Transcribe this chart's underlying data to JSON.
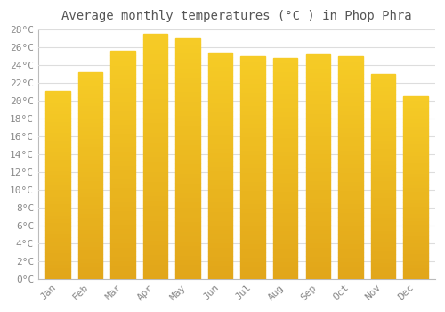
{
  "months": [
    "Jan",
    "Feb",
    "Mar",
    "Apr",
    "May",
    "Jun",
    "Jul",
    "Aug",
    "Sep",
    "Oct",
    "Nov",
    "Dec"
  ],
  "temperatures": [
    21.1,
    23.2,
    25.6,
    27.5,
    27.0,
    25.4,
    25.0,
    24.8,
    25.2,
    25.0,
    23.0,
    20.5
  ],
  "bar_color": "#F5A623",
  "bar_color_light": "#FFC84A",
  "title": "Average monthly temperatures (°C ) in Phop Phra",
  "ylim": [
    0,
    28
  ],
  "ytick_step": 2,
  "background_color": "#ffffff",
  "grid_color": "#dddddd",
  "title_fontsize": 10,
  "tick_fontsize": 8,
  "tick_color": "#888888",
  "title_color": "#555555"
}
